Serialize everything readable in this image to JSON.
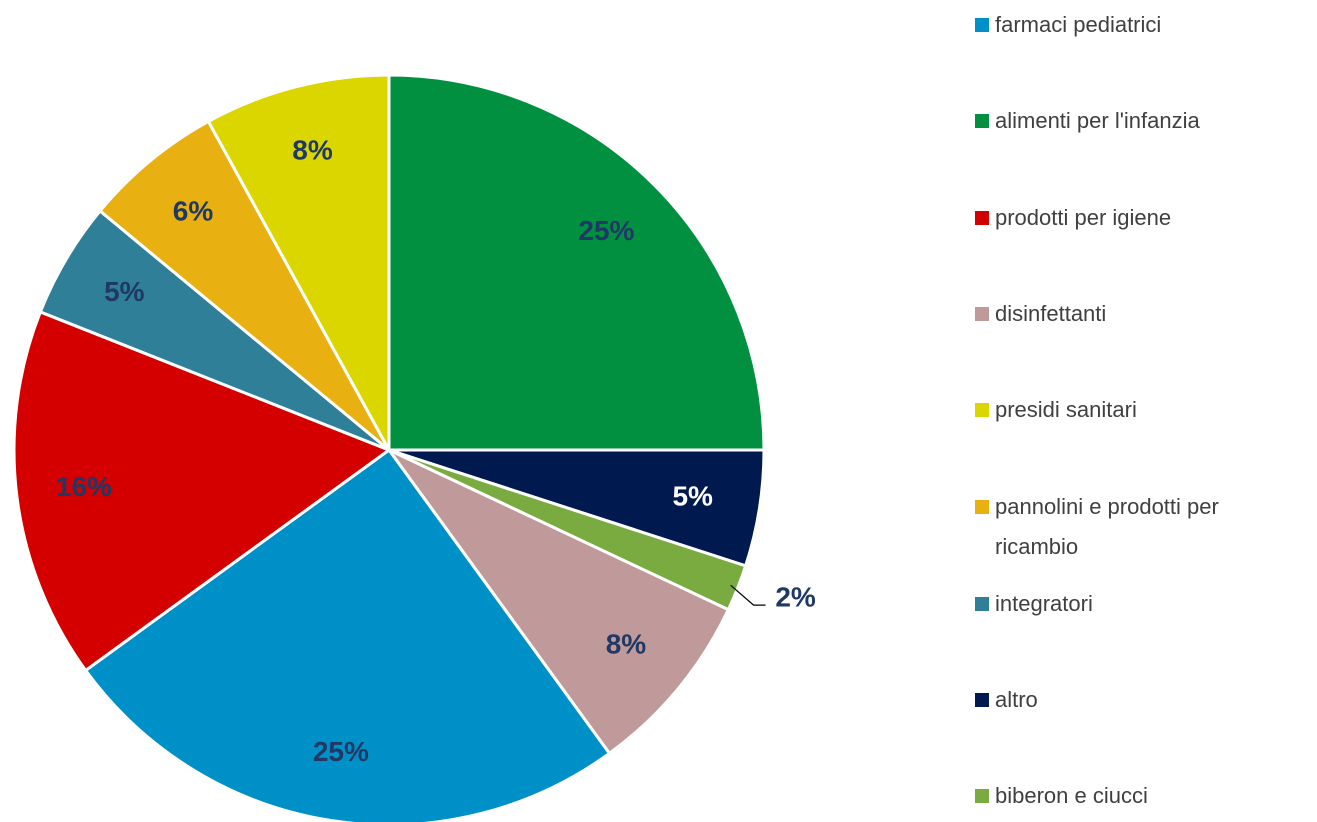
{
  "chart_data": {
    "type": "pie",
    "categories": [
      "farmaci pediatrici",
      "alimenti per l'infanzia",
      "prodotti per igiene",
      "disinfettanti",
      "presidi sanitari",
      "pannolini e prodotti per ricambio",
      "integratori",
      "altro",
      "biberon e ciucci"
    ],
    "values": [
      25,
      25,
      16,
      8,
      8,
      6,
      5,
      5,
      2
    ],
    "value_labels": [
      "25%",
      "25%",
      "16%",
      "8%",
      "8%",
      "6%",
      "5%",
      "5%",
      "2%"
    ],
    "colors": [
      "#0090c8",
      "#009040",
      "#d40000",
      "#c09a9a",
      "#dcd600",
      "#e8b010",
      "#2f7f98",
      "#001a50",
      "#7aab40"
    ],
    "legend": "right"
  }
}
